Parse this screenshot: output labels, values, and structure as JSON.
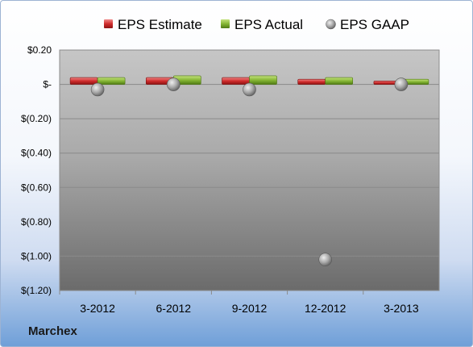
{
  "company": "Marchex",
  "colors": {
    "estimate": "#cc2a2a",
    "actual": "#7fae2e",
    "gaap": "#a9a9a9",
    "plot_top": "#c3c3c3",
    "plot_bottom": "#6a6a6a"
  },
  "chart_data": {
    "type": "bar",
    "categories": [
      "3-2012",
      "6-2012",
      "9-2012",
      "12-2012",
      "3-2013"
    ],
    "series": [
      {
        "name": "EPS Estimate",
        "kind": "bar",
        "values": [
          0.04,
          0.04,
          0.04,
          0.03,
          0.02
        ]
      },
      {
        "name": "EPS Actual",
        "kind": "bar",
        "values": [
          0.04,
          0.05,
          0.05,
          0.04,
          0.03
        ]
      },
      {
        "name": "EPS GAAP",
        "kind": "scatter",
        "values": [
          -0.03,
          0.0,
          -0.03,
          -1.02,
          0.0
        ]
      }
    ],
    "ylim": [
      -1.2,
      0.2
    ],
    "yticks": [
      0.2,
      0.0,
      -0.2,
      -0.4,
      -0.6,
      -0.8,
      -1.0,
      -1.2
    ],
    "ytick_labels": [
      "$0.20",
      "$-",
      "$(0.20)",
      "$(0.40)",
      "$(0.60)",
      "$(0.80)",
      "$(1.00)",
      "$(1.20)"
    ],
    "grid": true,
    "legend_position": "top"
  }
}
